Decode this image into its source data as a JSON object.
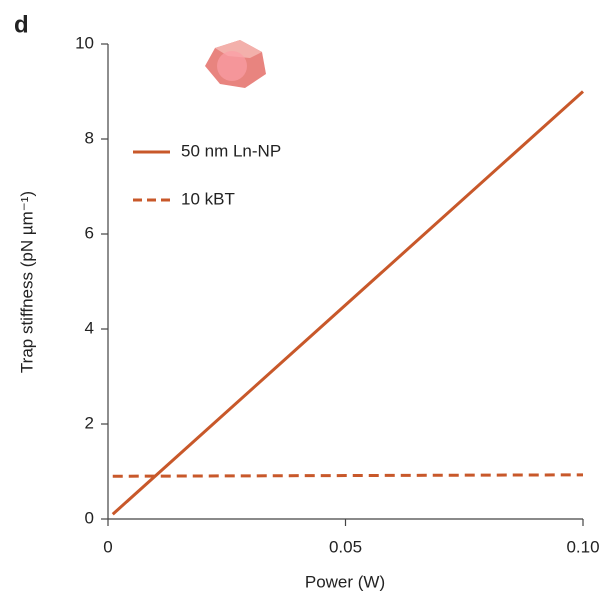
{
  "chart_data": {
    "type": "line",
    "panel_label": "d",
    "x_label": "Power (W)",
    "y_label": "Trap stiffness (pN µm⁻¹)",
    "x": [
      0.001,
      0.1
    ],
    "series": [
      {
        "name": "50 nm Ln-NP",
        "color": "#c8582a",
        "linestyle": "solid",
        "values": [
          0.1,
          9.0
        ]
      },
      {
        "name": "10 kBT",
        "color": "#c8582a",
        "linestyle": "dashed",
        "values": [
          0.9,
          0.93
        ]
      }
    ],
    "xlim": [
      0,
      0.1
    ],
    "xticks": [
      0,
      0.05,
      {
        "value": 0.1,
        "label": "0.10"
      }
    ],
    "ylim": [
      0,
      10
    ],
    "yticks": [
      0,
      2,
      4,
      6,
      8,
      10
    ],
    "legend": "upper left",
    "grid": false
  }
}
